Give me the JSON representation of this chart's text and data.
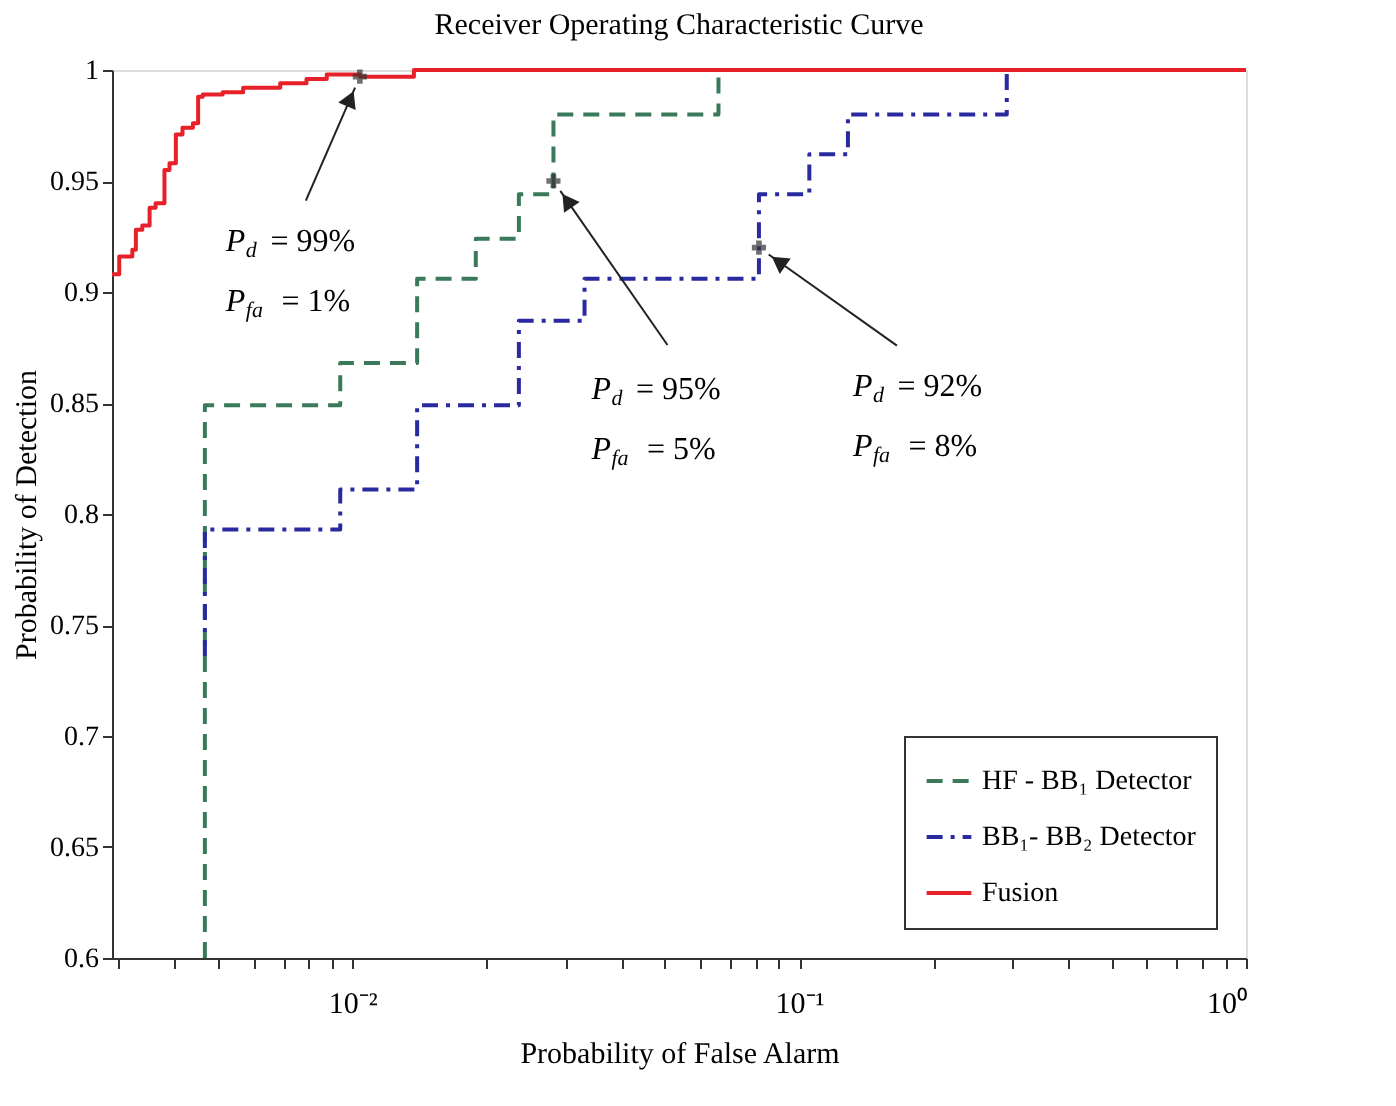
{
  "chart_data": {
    "type": "step",
    "title": "Receiver Operating Characteristic Curve",
    "xlabel": "Probability of False Alarm",
    "ylabel": "Probability of Detection",
    "log": "x",
    "xlim": [
      0.0029,
      1
    ],
    "ylim": [
      0.6,
      1
    ],
    "xticks": [
      {
        "value": 0.003,
        "label": null
      },
      {
        "value": 0.004,
        "label": null
      },
      {
        "value": 0.005,
        "label": null
      },
      {
        "value": 0.006,
        "label": null
      },
      {
        "value": 0.007,
        "label": null
      },
      {
        "value": 0.008,
        "label": null
      },
      {
        "value": 0.009,
        "label": null
      },
      {
        "value": 0.01,
        "label": "10⁻²"
      },
      {
        "value": 0.02,
        "label": null
      },
      {
        "value": 0.03,
        "label": null
      },
      {
        "value": 0.04,
        "label": null
      },
      {
        "value": 0.05,
        "label": null
      },
      {
        "value": 0.06,
        "label": null
      },
      {
        "value": 0.07,
        "label": null
      },
      {
        "value": 0.08,
        "label": null
      },
      {
        "value": 0.09,
        "label": null
      },
      {
        "value": 0.1,
        "label": "10⁻¹"
      },
      {
        "value": 0.2,
        "label": null
      },
      {
        "value": 0.3,
        "label": null
      },
      {
        "value": 0.4,
        "label": null
      },
      {
        "value": 0.5,
        "label": null
      },
      {
        "value": 0.6,
        "label": null
      },
      {
        "value": 0.7,
        "label": null
      },
      {
        "value": 0.8,
        "label": null
      },
      {
        "value": 0.9,
        "label": null
      },
      {
        "value": 1,
        "label": "10⁰"
      }
    ],
    "yticks": [
      0.6,
      0.65,
      0.7,
      0.75,
      0.8,
      0.85,
      0.9,
      0.95,
      1
    ],
    "grid": false,
    "legend": "bottom right",
    "marker": "none",
    "series": [
      {
        "name": "HF - BB₁ Detector",
        "color": "#3a7a5a",
        "line_style": "dashed",
        "x": [
          0.00468,
          0.00468,
          0.0094,
          0.01397,
          0.0189,
          0.0236,
          0.0282,
          0.066
        ],
        "values": [
          0.6,
          0.849,
          0.868,
          0.906,
          0.924,
          0.944,
          0.98,
          1
        ]
      },
      {
        "name": "BB₁- BB₂ Detector",
        "color": "#2a2aa0",
        "line_style": "dashdot",
        "x": [
          0.00468,
          0.00468,
          0.0094,
          0.01397,
          0.0236,
          0.0331,
          0.0813,
          0.1054,
          0.1286,
          0.2915
        ],
        "values": [
          0.736,
          0.793,
          0.811,
          0.849,
          0.887,
          0.906,
          0.944,
          0.962,
          0.98,
          1
        ]
      },
      {
        "name": "Fusion",
        "color": "#e8202a",
        "line_style": "solid",
        "x": [
          0.0029,
          0.00301,
          0.00322,
          0.00328,
          0.00339,
          0.00352,
          0.00363,
          0.0038,
          0.0039,
          0.00403,
          0.00417,
          0.0044,
          0.00452,
          0.00463,
          0.00513,
          0.0057,
          0.0069,
          0.0079,
          0.00877,
          0.0104,
          0.01374,
          1
        ],
        "values": [
          0.908,
          0.916,
          0.919,
          0.928,
          0.93,
          0.938,
          0.94,
          0.955,
          0.958,
          0.971,
          0.974,
          0.976,
          0.988,
          0.989,
          0.99,
          0.992,
          0.994,
          0.996,
          0.998,
          0.997,
          1,
          1
        ]
      }
    ],
    "annotations": [
      {
        "text": "P$_{d}$ = 99%\nP$_{fa}$ = 1%",
        "x": 0.0104,
        "y": 0.997
      },
      {
        "text": "P$_{d}$ = 95%\nP$_{fa}$ = 5%",
        "x": 0.0282,
        "y": 0.95
      },
      {
        "text": "P$_{d}$ = 92%\nP$_{fa}$ = 8%",
        "x": 0.0813,
        "y": 0.92
      }
    ]
  }
}
